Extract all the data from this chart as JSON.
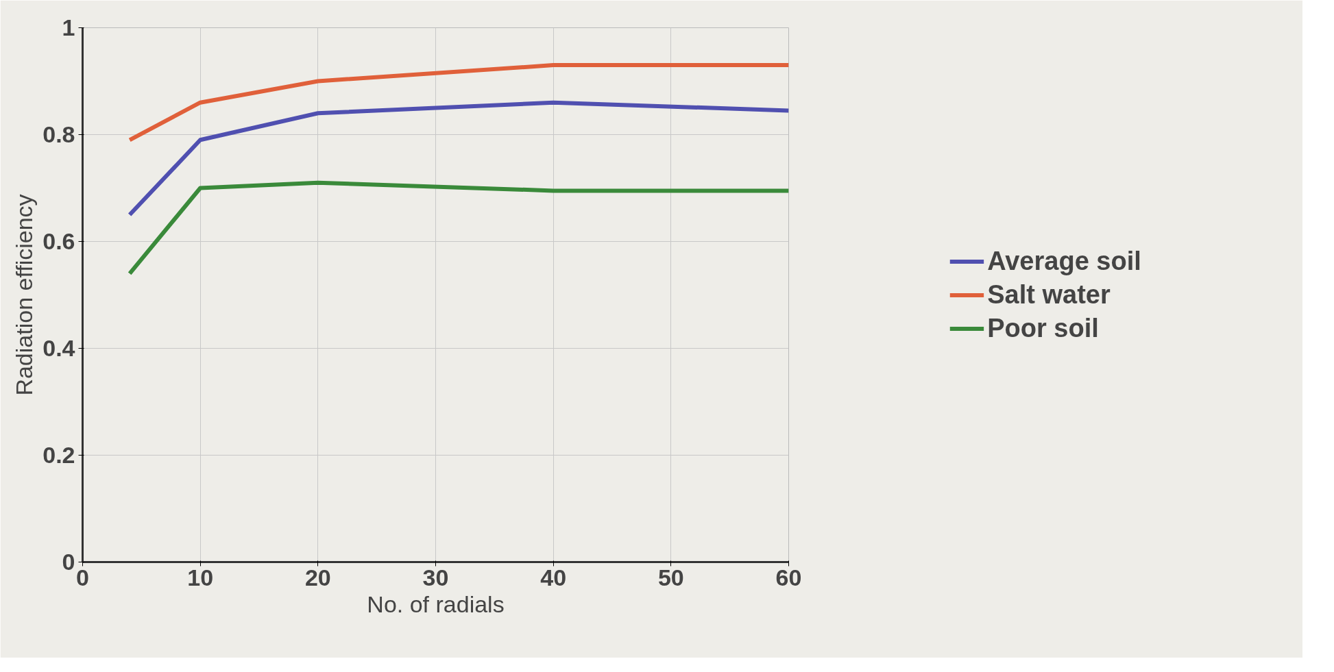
{
  "chart_data": {
    "type": "line",
    "xlabel": "No. of radials",
    "ylabel": "Radiation efficiency",
    "xlim": [
      0,
      60
    ],
    "ylim": [
      0,
      1
    ],
    "xticks": [
      0,
      10,
      20,
      30,
      40,
      50,
      60
    ],
    "yticks": [
      0,
      {
        "value": 0.2,
        "label": "0.2"
      },
      {
        "value": 0.4,
        "label": "0.4"
      },
      {
        "value": 0.6,
        "label": "0.6"
      },
      {
        "value": 0.8,
        "label": "0.8"
      },
      1
    ],
    "grid": true,
    "legend": "right",
    "line_style": "solid",
    "series": [
      {
        "name": "Average soil",
        "color": "#5050b0",
        "x": [
          4,
          10,
          20,
          40,
          60
        ],
        "values": [
          0.65,
          0.79,
          0.84,
          0.86,
          0.845
        ]
      },
      {
        "name": "Salt water",
        "color": "#e0603a",
        "x": [
          4,
          10,
          20,
          40,
          60
        ],
        "values": [
          0.79,
          0.86,
          0.9,
          0.93,
          0.93
        ]
      },
      {
        "name": "Poor soil",
        "color": "#3a8a3a",
        "x": [
          4,
          10,
          20,
          40,
          60
        ],
        "values": [
          0.54,
          0.7,
          0.71,
          0.695,
          0.695
        ]
      }
    ]
  }
}
